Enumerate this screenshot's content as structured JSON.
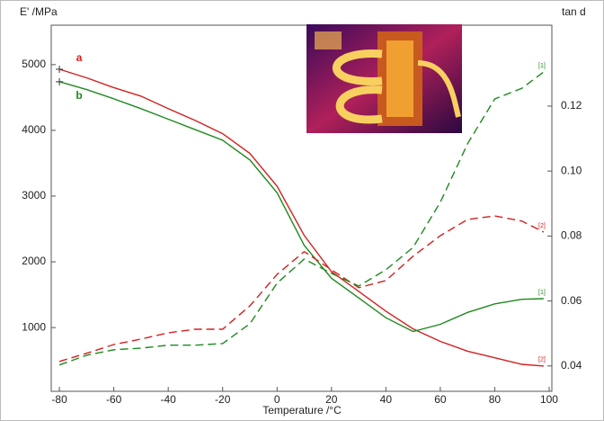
{
  "chart_data": {
    "type": "line",
    "y_label": "E' /MPa",
    "y2_label": "tan d",
    "x_label": "Temperature /°C",
    "x": [
      -80,
      -70,
      -60,
      -50,
      -40,
      -30,
      -20,
      -10,
      0,
      10,
      20,
      30,
      40,
      50,
      60,
      70,
      80,
      90,
      98
    ],
    "series": [
      {
        "name": "a",
        "color": "#d42020",
        "dash": false,
        "axis": "y",
        "values": [
          4930,
          4800,
          4650,
          4520,
          4330,
          4150,
          3950,
          3650,
          3150,
          2400,
          1850,
          1550,
          1250,
          980,
          790,
          640,
          540,
          440,
          415
        ]
      },
      {
        "name": "b",
        "color": "#1e8a1e",
        "dash": false,
        "axis": "y",
        "label": "[1]",
        "values": [
          4740,
          4620,
          4480,
          4330,
          4170,
          4010,
          3850,
          3550,
          3050,
          2250,
          1750,
          1450,
          1150,
          940,
          1050,
          1230,
          1360,
          1430,
          1440
        ]
      },
      {
        "color": "#d42020",
        "dash": true,
        "axis": "y2",
        "label": "[2]",
        "values": [
          0.0414,
          0.0439,
          0.0466,
          0.0483,
          0.0502,
          0.0513,
          0.0513,
          0.0585,
          0.0682,
          0.0752,
          0.0696,
          0.0641,
          0.0663,
          0.0738,
          0.0801,
          0.0851,
          0.0862,
          0.0846,
          0.0812
        ]
      },
      {
        "color": "#1e8a1e",
        "dash": true,
        "axis": "y2",
        "label": "[1]",
        "values": [
          0.0403,
          0.0433,
          0.045,
          0.0455,
          0.0464,
          0.0464,
          0.0469,
          0.053,
          0.0655,
          0.0729,
          0.0685,
          0.0646,
          0.0696,
          0.0765,
          0.0904,
          0.1084,
          0.1222,
          0.1255,
          0.1305
        ]
      }
    ],
    "end_label_a": "[2]",
    "xlim": [
      -83,
      101
    ],
    "xticks": [
      -80,
      -60,
      -40,
      -20,
      0,
      20,
      40,
      60,
      80,
      100
    ],
    "ylim": [
      30,
      5600
    ],
    "yticks": [
      1000,
      2000,
      3000,
      4000,
      5000
    ],
    "y2lim": [
      0.0322,
      0.1449
    ],
    "y2ticks": [
      0.04,
      0.06,
      0.08,
      {
        "value": 0.1,
        "label": "0.10"
      },
      0.12
    ]
  }
}
